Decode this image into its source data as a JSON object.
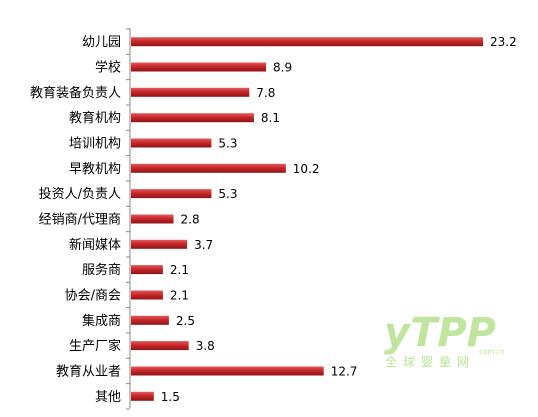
{
  "chart_data": {
    "type": "bar",
    "orientation": "horizontal",
    "categories": [
      "幼儿园",
      "学校",
      "教育装备负责人",
      "教育机构",
      "培训机构",
      "早教机构",
      "投资人/负责人",
      "经销商/代理商",
      "新闻媒体",
      "服务商",
      "协会/商会",
      "集成商",
      "生产厂家",
      "教育从业者",
      "其他"
    ],
    "values": [
      23.2,
      8.9,
      7.8,
      8.1,
      5.3,
      10.2,
      5.3,
      2.8,
      3.7,
      2.1,
      2.1,
      2.5,
      3.8,
      12.7,
      1.5
    ],
    "value_labels": [
      "23.2",
      "8.9",
      "7.8",
      "8.1",
      "5.3",
      "10.2",
      "5.3",
      "2.8",
      "3.7",
      "2.1",
      "2.1",
      "2.5",
      "3.8",
      "12.7",
      "1.5"
    ],
    "xlim": [
      0,
      23.2
    ],
    "grid": false,
    "legend": "none",
    "bar_color": "#c0282b"
  },
  "watermark": {
    "logo": "yTPP",
    "sub": "全球婴童网",
    "domain": ".com.cn",
    "color": "#8fd14f"
  }
}
